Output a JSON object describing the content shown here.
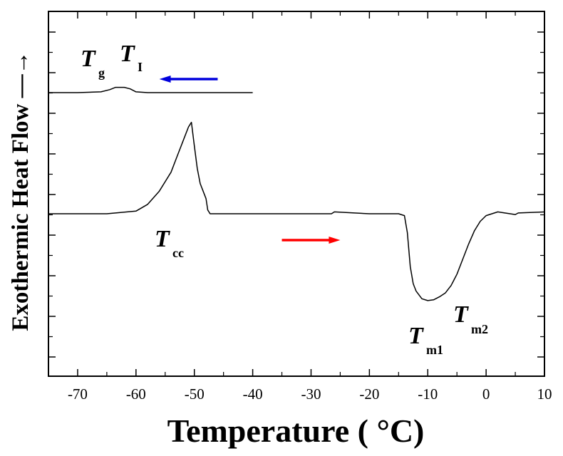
{
  "chart_data": {
    "type": "line",
    "title": "",
    "xlabel": "Temperature ( °C)",
    "ylabel": "Exothermic Heat Flow —→",
    "xlim": [
      -75,
      10
    ],
    "x_ticks": [
      -70,
      -60,
      -50,
      -40,
      -30,
      -20,
      -10,
      0,
      10
    ],
    "y_tick_labels": "none",
    "grid": false,
    "legend": "none",
    "series": [
      {
        "color": "#000000",
        "x": [
          -75,
          -70,
          -66,
          -64.5,
          -63.5,
          -62,
          -61,
          -60,
          -58,
          -55,
          -50,
          -45,
          -40
        ],
        "y": [
          0.0,
          0.0,
          0.02,
          0.08,
          0.14,
          0.14,
          0.1,
          0.02,
          0.0,
          0.0,
          0.0,
          0.0,
          0.0
        ]
      },
      {
        "color": "#000000",
        "x": [
          -75,
          -65,
          -60,
          -58,
          -56,
          -54,
          -53,
          -52,
          -51,
          -50.5,
          -50,
          -49.5,
          -49,
          -48.5,
          -48,
          -47.7,
          -47.3,
          -46,
          -40,
          -30,
          -26.5,
          -26,
          -20,
          -15,
          -14,
          -13.5,
          -13,
          -12.5,
          -12,
          -11,
          -10,
          -9,
          -8,
          -7,
          -6,
          -5,
          -4,
          -3,
          -2,
          -1,
          0,
          1,
          2,
          5,
          5.5,
          10
        ],
        "y": [
          0.0,
          0.0,
          0.07,
          0.25,
          0.6,
          1.1,
          1.5,
          1.9,
          2.3,
          2.42,
          1.8,
          1.2,
          0.8,
          0.6,
          0.4,
          0.1,
          0.0,
          0.0,
          0.0,
          0.0,
          0.0,
          0.05,
          0.0,
          0.0,
          -0.05,
          -0.5,
          -1.4,
          -1.85,
          -2.05,
          -2.25,
          -2.3,
          -2.28,
          -2.2,
          -2.1,
          -1.9,
          -1.6,
          -1.2,
          -0.8,
          -0.45,
          -0.2,
          -0.05,
          0.0,
          0.05,
          -0.02,
          0.02,
          0.05
        ]
      }
    ],
    "arrows": [
      {
        "color": "#0000dd",
        "x_from": -46,
        "x_to": -56,
        "y": 0.0
      },
      {
        "color": "#ff0000",
        "x_from": -35,
        "x_to": -25,
        "y": 0.0
      }
    ],
    "annotations": [
      {
        "main": "T",
        "sub": "g"
      },
      {
        "main": "T",
        "sub": "I"
      },
      {
        "main": "T",
        "sub": "cc"
      },
      {
        "main": "T",
        "sub": "m1"
      },
      {
        "main": "T",
        "sub": "m2"
      }
    ]
  }
}
